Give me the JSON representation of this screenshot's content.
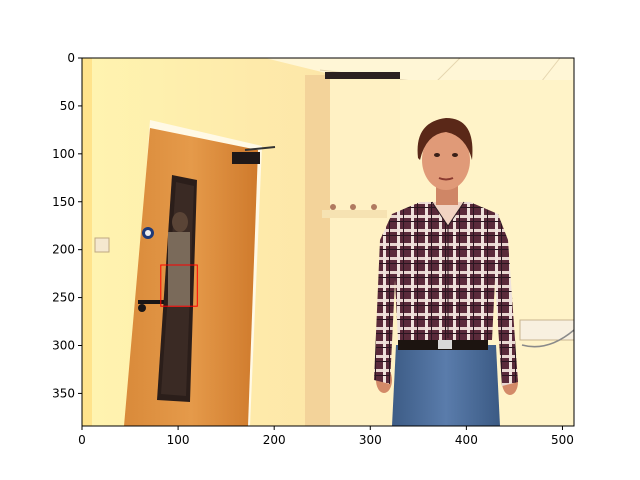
{
  "figure": {
    "image_extent": {
      "x": [
        0,
        512
      ],
      "y": [
        384,
        0
      ]
    },
    "x_ticks": [
      0,
      100,
      200,
      300,
      400,
      500
    ],
    "y_ticks": [
      0,
      50,
      100,
      150,
      200,
      250,
      300,
      350
    ],
    "annotation_box": {
      "x0": 82,
      "y0": 216,
      "x1": 120,
      "y1": 259,
      "color": "#ff0000"
    }
  }
}
